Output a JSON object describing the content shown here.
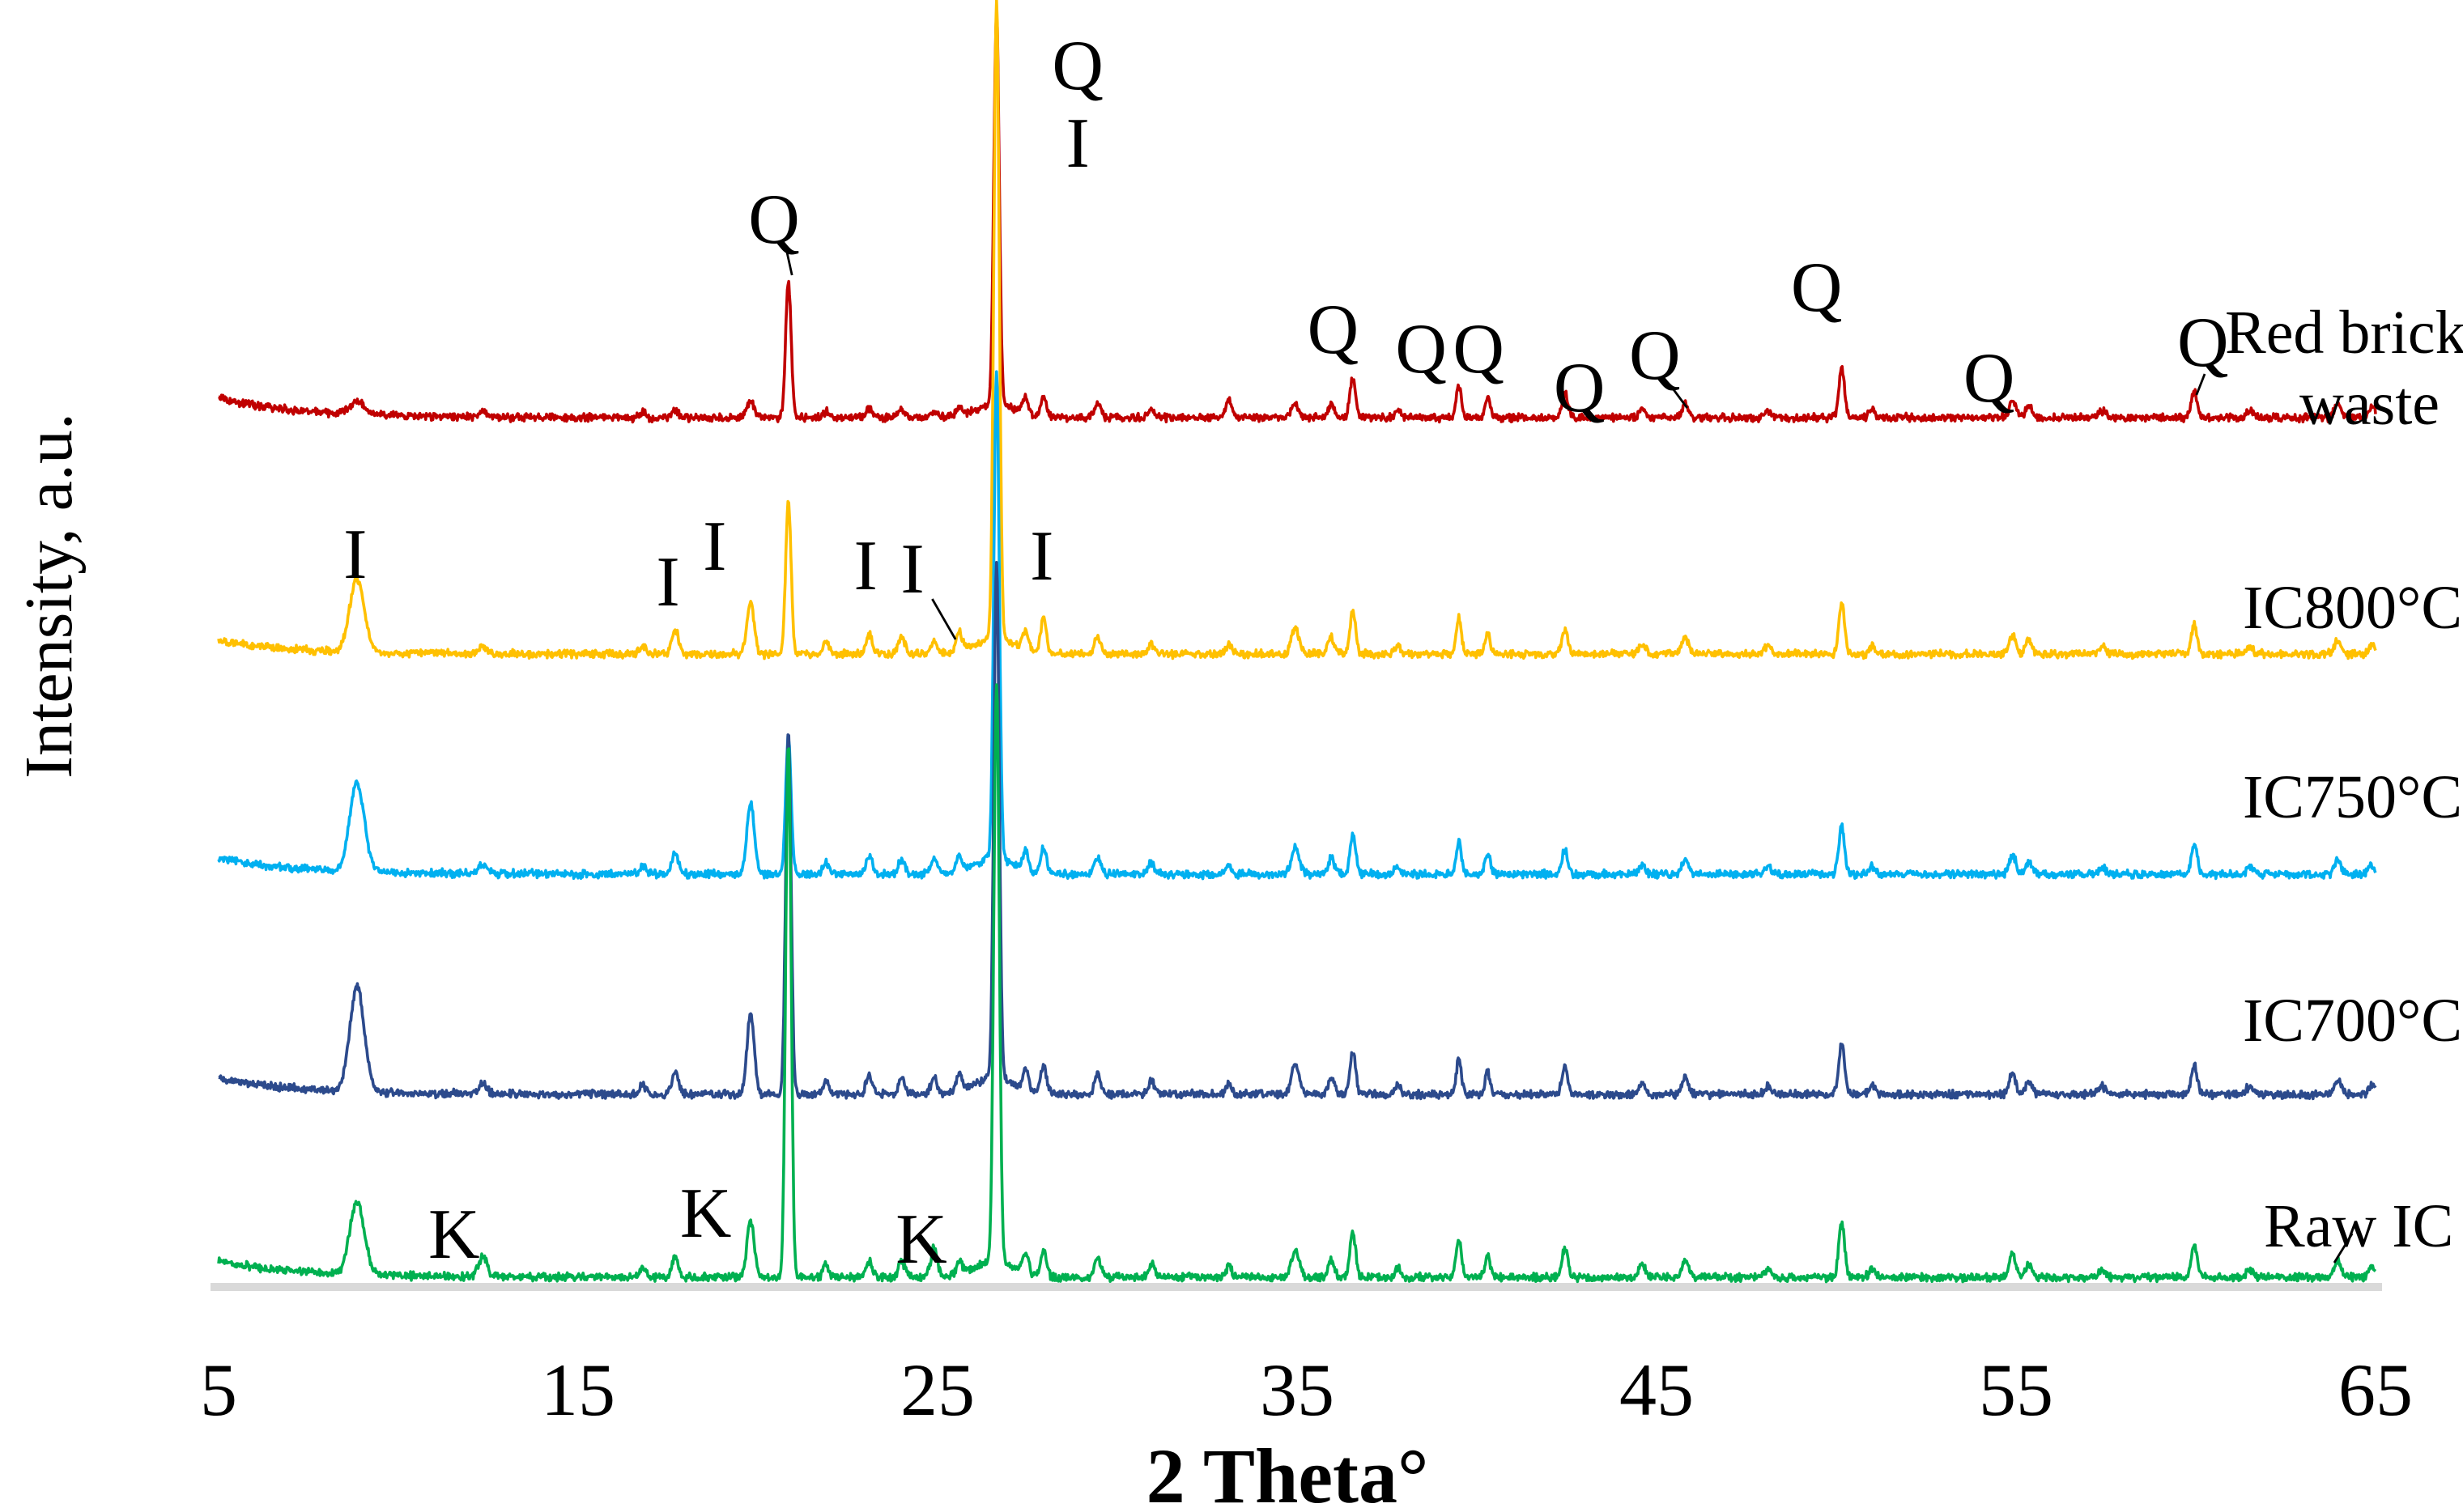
{
  "chart_data": {
    "type": "line",
    "title": "",
    "xlabel": "2 Theta°",
    "ylabel": "Intensity, a.u.",
    "x_range": [
      5,
      65
    ],
    "x_ticks": [
      5,
      15,
      25,
      35,
      45,
      55,
      65
    ],
    "x_tick_labels": [
      "5",
      "15",
      "25",
      "35",
      "45",
      "55",
      "65"
    ],
    "grid": false,
    "legend_position": "right",
    "baseline_axis_color": "#d9d9d9",
    "peaks_two_theta": [
      8.85,
      12.35,
      16.8,
      17.7,
      19.8,
      20.85,
      21.9,
      23.1,
      24.0,
      24.9,
      25.6,
      26.64,
      27.45,
      27.95,
      29.45,
      30.95,
      33.1,
      34.95,
      35.95,
      36.55,
      37.8,
      39.5,
      40.3,
      42.45,
      44.6,
      45.8,
      48.1,
      50.15,
      51.0,
      54.9,
      55.35,
      57.4,
      59.96,
      61.5,
      63.95,
      64.9,
      26.6
    ],
    "peak_sigmas": [
      0.2,
      0.12,
      0.08,
      0.09,
      0.1,
      0.075,
      0.08,
      0.09,
      0.09,
      0.09,
      0.08,
      0.075,
      0.08,
      0.08,
      0.09,
      0.09,
      0.08,
      0.11,
      0.09,
      0.08,
      0.08,
      0.07,
      0.07,
      0.08,
      0.09,
      0.09,
      0.09,
      0.08,
      0.08,
      0.09,
      0.09,
      0.09,
      0.08,
      0.09,
      0.09,
      0.09,
      0.55
    ],
    "series": [
      {
        "name": "Red brick waste",
        "label_line1": "Red brick",
        "label_line2": "waste",
        "color": "#c00000",
        "baseline_y": 258,
        "noise": 1.7,
        "left_drift": 12,
        "peak_heights": [
          8,
          3,
          3,
          5,
          10,
          85,
          4,
          6,
          5,
          4,
          5,
          242,
          10,
          12,
          8,
          5,
          12,
          8,
          8,
          24,
          4,
          20,
          13,
          15,
          5,
          8,
          4,
          30,
          5,
          11,
          7,
          4,
          16,
          4,
          9,
          6,
          8
        ]
      },
      {
        "name": "IC800°C",
        "color": "#ffc000",
        "baseline_y": 404,
        "noise": 1.7,
        "left_drift": 8,
        "peak_heights": [
          45,
          4,
          5,
          15,
          32,
          95,
          8,
          12,
          10,
          8,
          12,
          392,
          12,
          22,
          10,
          6,
          6,
          16,
          10,
          26,
          5,
          22,
          13,
          15,
          6,
          10,
          5,
          32,
          5,
          12,
          8,
          4,
          18,
          4,
          9,
          6,
          10
        ]
      },
      {
        "name": "IC750°C",
        "color": "#00b0f0",
        "baseline_y": 540,
        "noise": 1.7,
        "left_drift": 10,
        "peak_heights": [
          55,
          5,
          5,
          13,
          45,
          85,
          7,
          11,
          9,
          9,
          10,
          300,
          11,
          16,
          10,
          7,
          6,
          16,
          10,
          24,
          5,
          20,
          13,
          15,
          6,
          10,
          5,
          30,
          5,
          12,
          8,
          4,
          18,
          4,
          9,
          6,
          10
        ]
      },
      {
        "name": "IC700°C",
        "color": "#2c4a8c",
        "baseline_y": 676,
        "noise": 1.7,
        "left_drift": 10,
        "peak_heights": [
          65,
          6,
          6,
          14,
          50,
          225,
          8,
          12,
          10,
          10,
          11,
          318,
          12,
          18,
          12,
          8,
          7,
          18,
          10,
          26,
          6,
          22,
          14,
          17,
          7,
          10,
          5,
          32,
          6,
          13,
          8,
          5,
          18,
          5,
          10,
          6,
          10
        ]
      },
      {
        "name": "Raw IC",
        "color": "#00b050",
        "baseline_y": 789,
        "noise": 1.7,
        "left_drift": 10,
        "peak_heights": [
          45,
          12,
          6,
          12,
          35,
          330,
          8,
          10,
          10,
          18,
          8,
          358,
          12,
          15,
          12,
          8,
          7,
          16,
          10,
          28,
          6,
          24,
          14,
          18,
          8,
          10,
          5,
          34,
          6,
          14,
          8,
          5,
          20,
          5,
          10,
          7,
          10
        ]
      }
    ],
    "annotations": [
      {
        "text": "Q",
        "theta": 28.9,
        "y": 55
      },
      {
        "text": "I",
        "theta": 28.9,
        "y": 103
      },
      {
        "text": "Q",
        "theta": 20.45,
        "y": 150,
        "leader": [
          20.8,
          155,
          20.95,
          170
        ]
      },
      {
        "text": "Q",
        "theta": 36.0,
        "y": 218
      },
      {
        "text": "Q",
        "theta": 38.45,
        "y": 230
      },
      {
        "text": "Q",
        "theta": 40.05,
        "y": 230
      },
      {
        "text": "Q",
        "theta": 42.85,
        "y": 254
      },
      {
        "text": "Q",
        "theta": 44.95,
        "y": 234,
        "leader": [
          45.45,
          240,
          45.85,
          252
        ]
      },
      {
        "text": "Q",
        "theta": 49.45,
        "y": 192
      },
      {
        "text": "Q",
        "theta": 54.25,
        "y": 248
      },
      {
        "text": "Q",
        "theta": 60.2,
        "y": 226,
        "leader": [
          60.25,
          231,
          60.02,
          244
        ]
      },
      {
        "text": "I",
        "theta": 8.8,
        "y": 357
      },
      {
        "text": "I",
        "theta": 17.5,
        "y": 374
      },
      {
        "text": "I",
        "theta": 18.8,
        "y": 352
      },
      {
        "text": "I",
        "theta": 23.0,
        "y": 364
      },
      {
        "text": "I",
        "theta": 24.3,
        "y": 366,
        "leader": [
          24.85,
          370,
          25.5,
          395
        ]
      },
      {
        "text": "I",
        "theta": 27.9,
        "y": 358
      },
      {
        "text": "K",
        "theta": 11.55,
        "y": 777
      },
      {
        "text": "K",
        "theta": 18.55,
        "y": 764
      },
      {
        "text": "K",
        "theta": 24.55,
        "y": 780
      },
      {
        "text": "",
        "theta": 64.2,
        "y": 760,
        "leader": [
          64.35,
          762,
          63.85,
          780
        ]
      }
    ]
  }
}
